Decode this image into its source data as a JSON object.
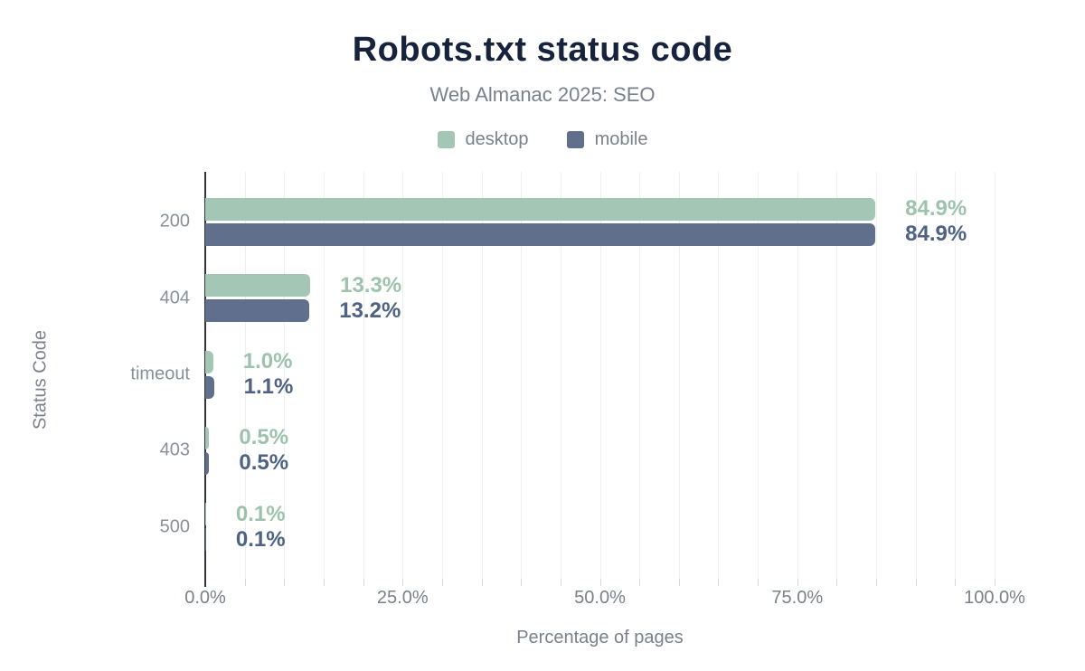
{
  "chart_data": {
    "type": "bar",
    "orientation": "horizontal",
    "title": "Robots.txt status code",
    "subtitle": "Web Almanac 2025: SEO",
    "xlabel": "Percentage of pages",
    "ylabel": "Status Code",
    "categories": [
      "200",
      "404",
      "timeout",
      "403",
      "500"
    ],
    "series": [
      {
        "name": "desktop",
        "values": [
          84.9,
          13.3,
          1.0,
          0.5,
          0.1
        ],
        "labels": [
          "84.9%",
          "13.3%",
          "1.0%",
          "0.5%",
          "0.1%"
        ],
        "bar_color": "#a4c7b5",
        "label_color": "#9dc3af"
      },
      {
        "name": "mobile",
        "values": [
          84.9,
          13.2,
          1.1,
          0.5,
          0.1
        ],
        "labels": [
          "84.9%",
          "13.2%",
          "1.1%",
          "0.5%",
          "0.1%"
        ],
        "bar_color": "#60708c",
        "label_color": "#4d6284"
      }
    ],
    "x_ticks": [
      "0.0%",
      "25.0%",
      "50.0%",
      "75.0%",
      "100.0%"
    ],
    "xlim": [
      0,
      100
    ],
    "grid_step_percent": 5,
    "grid": true,
    "legend_position": "top",
    "colors": {
      "title": "#17233d",
      "muted_text": "#7b818c",
      "category_text": "#8a9099",
      "gridline": "#eef0f1",
      "axis_line": "#2f343d"
    }
  }
}
